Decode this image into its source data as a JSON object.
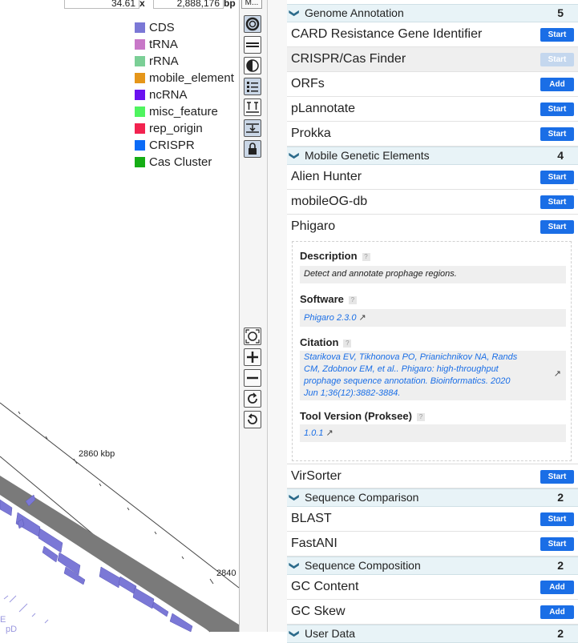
{
  "map": {
    "zoom_value": "34.61",
    "zoom_unit": "x",
    "position_value": "2,888,176",
    "position_unit": "bp",
    "menu_label": "M...",
    "scale_labels": [
      "2860 kbp",
      "2840"
    ],
    "corner_letters": [
      "E",
      "pD"
    ],
    "legend": [
      {
        "label": "CDS",
        "color": "#7b78d6"
      },
      {
        "label": "tRNA",
        "color": "#c878c8"
      },
      {
        "label": "rRNA",
        "color": "#7bcf96"
      },
      {
        "label": "mobile_element",
        "color": "#e5961a"
      },
      {
        "label": "ncRNA",
        "color": "#6a12f0"
      },
      {
        "label": "misc_feature",
        "color": "#4ff45f"
      },
      {
        "label": "rep_origin",
        "color": "#f2234f"
      },
      {
        "label": "CRISPR",
        "color": "#0b6bf7"
      },
      {
        "label": "Cas Cluster",
        "color": "#15ad15"
      }
    ]
  },
  "toolbar": {
    "top_icons": [
      "circular-format-icon",
      "linear-format-icon",
      "invert-colors-icon",
      "legend-toggle-icon",
      "label-toggle-icon",
      "move-track-icon",
      "lock-icon"
    ],
    "bottom_icons": [
      "reset-view-icon",
      "zoom-in-icon",
      "zoom-out-icon",
      "rotate-clockwise-icon",
      "rotate-counterclockwise-icon"
    ]
  },
  "panel": {
    "sections": [
      {
        "title": "Genome Annotation",
        "count": "5"
      },
      {
        "title": "Mobile Genetic Elements",
        "count": "4"
      },
      {
        "title": "Sequence Comparison",
        "count": "2"
      },
      {
        "title": "Sequence Composition",
        "count": "2"
      },
      {
        "title": "User Data",
        "count": "2"
      }
    ],
    "tools": [
      {
        "label": "CARD Resistance Gene Identifier",
        "action": "Start"
      },
      {
        "label": "CRISPR/Cas Finder",
        "action": "Start"
      },
      {
        "label": "ORFs",
        "action": "Add"
      },
      {
        "label": "pLannotate",
        "action": "Start"
      },
      {
        "label": "Prokka",
        "action": "Start"
      },
      {
        "label": "Alien Hunter",
        "action": "Start"
      },
      {
        "label": "mobileOG-db",
        "action": "Start"
      },
      {
        "label": "Phigaro",
        "action": "Start"
      },
      {
        "label": "VirSorter",
        "action": "Start"
      },
      {
        "label": "BLAST",
        "action": "Start"
      },
      {
        "label": "FastANI",
        "action": "Start"
      },
      {
        "label": "GC Content",
        "action": "Add"
      },
      {
        "label": "GC Skew",
        "action": "Add"
      }
    ],
    "details": {
      "description_label": "Description",
      "description": "Detect and annotate prophage regions.",
      "software_label": "Software",
      "software": "Phigaro 2.3.0",
      "citation_label": "Citation",
      "citation_lines": [
        "Starikova EV, Tikhonova PO, Prianichnikov NA, Rands",
        "CM, Zdobnov EM, et al.. Phigaro: high-throughput",
        "prophage sequence annotation. Bioinformatics. 2020",
        "Jun 1;36(12):3882-3884."
      ],
      "version_label": "Tool Version (Proksee)",
      "version": "1.0.1",
      "help_glyph": "?"
    }
  }
}
